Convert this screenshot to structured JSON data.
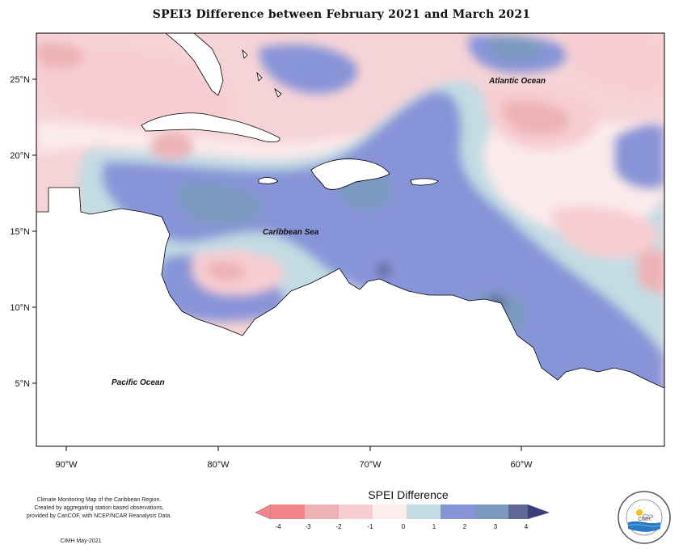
{
  "title": "SPEI3 Difference between February 2021 and March 2021",
  "map": {
    "lat_ticks": [
      "25°N",
      "20°N",
      "15°N",
      "10°N",
      "5°N"
    ],
    "lon_ticks": [
      "90°W",
      "80°W",
      "70°W",
      "60°W"
    ],
    "places": {
      "atlantic": "Atlantic Ocean",
      "caribbean": "Caribbean Sea",
      "pacific": "Pacific Ocean"
    }
  },
  "credits": {
    "line1": "Climate Monitoring Map of the Caribbean Region.",
    "line2": "Created by aggregating station based observations,",
    "line3": "provided by CariCOF, with NCEP/NCAR Reanalysis Data.",
    "date": "CIMH May-2021"
  },
  "legend": {
    "title": "SPEI Difference",
    "ticks": [
      "-4",
      "-3",
      "-2",
      "-1",
      "0",
      "1",
      "2",
      "3",
      "4"
    ],
    "colors": [
      "#f4858d",
      "#edb2b6",
      "#f7cdd2",
      "#fcecec",
      "#c3dbe3",
      "#8894d8",
      "#7c9abf",
      "#5e6795"
    ]
  },
  "logo": {
    "icon": "cimh-logo-icon"
  }
}
